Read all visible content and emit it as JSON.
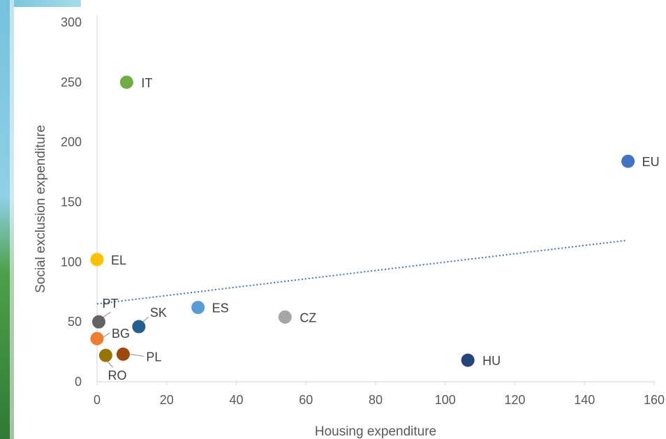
{
  "chart_data": {
    "type": "scatter",
    "title": "",
    "xlabel": "Housing expenditure",
    "ylabel": "Social exclusion expenditure",
    "xlim": [
      0,
      160
    ],
    "ylim": [
      0,
      300
    ],
    "x_ticks": [
      0,
      20,
      40,
      60,
      80,
      100,
      120,
      140,
      160
    ],
    "y_ticks": [
      0,
      50,
      100,
      150,
      200,
      250,
      300
    ],
    "grid": false,
    "legend": "none",
    "points": [
      {
        "label": "IT",
        "x": 8.5,
        "y": 250,
        "color": "#70ad47"
      },
      {
        "label": "EU",
        "x": 152.5,
        "y": 184,
        "color": "#4472c4"
      },
      {
        "label": "EL",
        "x": 0,
        "y": 102,
        "color": "#ffc000"
      },
      {
        "label": "ES",
        "x": 29,
        "y": 62,
        "color": "#5b9bd5"
      },
      {
        "label": "CZ",
        "x": 54,
        "y": 54,
        "color": "#a5a5a5"
      },
      {
        "label": "PT",
        "x": 0.5,
        "y": 50,
        "color": "#636363"
      },
      {
        "label": "SK",
        "x": 12,
        "y": 46,
        "color": "#255e91"
      },
      {
        "label": "BG",
        "x": 0,
        "y": 36,
        "color": "#ed7d31"
      },
      {
        "label": "PL",
        "x": 7.5,
        "y": 23,
        "color": "#9e480e"
      },
      {
        "label": "RO",
        "x": 2.5,
        "y": 22,
        "color": "#997300"
      },
      {
        "label": "HU",
        "x": 106.5,
        "y": 18,
        "color": "#264478"
      }
    ],
    "trendline": {
      "style": "dotted",
      "color": "#4472c4",
      "x": [
        0,
        152
      ],
      "y": [
        65,
        118
      ]
    }
  }
}
